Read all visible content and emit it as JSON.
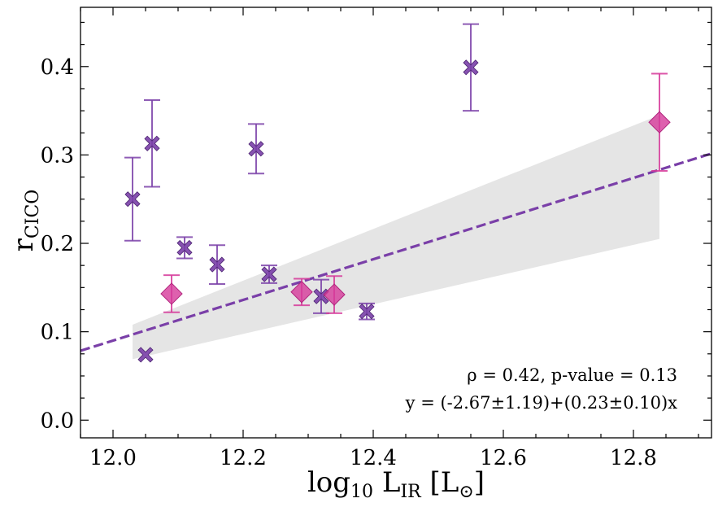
{
  "chart_data": {
    "type": "scatter",
    "title": "",
    "xlabel": {
      "base": "log",
      "base_sub": "10",
      "main": " L",
      "main_sub": "IR",
      "unit_open": " [L",
      "unit_sub": "⊙",
      "unit_close": "]"
    },
    "ylabel": {
      "main": "r",
      "sub": "CICO"
    },
    "xlim": [
      11.95,
      12.92
    ],
    "ylim": [
      -0.02,
      0.467
    ],
    "xticks": [
      12.0,
      12.2,
      12.4,
      12.6,
      12.8
    ],
    "xtick_labels": [
      "12.0",
      "12.2",
      "12.4",
      "12.6",
      "12.8"
    ],
    "yticks": [
      0.0,
      0.1,
      0.2,
      0.3,
      0.4
    ],
    "ytick_labels": [
      "0.0",
      "0.1",
      "0.2",
      "0.3",
      "0.4"
    ],
    "x_minor_step": 0.05,
    "y_minor_step": 0.025,
    "grid": false,
    "series": [
      {
        "name": "crosses",
        "marker": "X",
        "color": "#7a3fa8",
        "points": [
          {
            "x": 12.03,
            "y": 0.25,
            "err": 0.047
          },
          {
            "x": 12.05,
            "y": 0.074,
            "err": 0.0
          },
          {
            "x": 12.06,
            "y": 0.313,
            "err": 0.049
          },
          {
            "x": 12.11,
            "y": 0.195,
            "err": 0.012
          },
          {
            "x": 12.16,
            "y": 0.176,
            "err": 0.022
          },
          {
            "x": 12.22,
            "y": 0.307,
            "err": 0.028
          },
          {
            "x": 12.24,
            "y": 0.165,
            "err": 0.01
          },
          {
            "x": 12.32,
            "y": 0.14,
            "err": 0.019
          },
          {
            "x": 12.39,
            "y": 0.123,
            "err": 0.009
          },
          {
            "x": 12.55,
            "y": 0.399,
            "err": 0.049
          }
        ]
      },
      {
        "name": "diamonds",
        "marker": "D",
        "color": "#d63a9a",
        "points": [
          {
            "x": 12.09,
            "y": 0.143,
            "err": 0.021
          },
          {
            "x": 12.29,
            "y": 0.145,
            "err": 0.015
          },
          {
            "x": 12.34,
            "y": 0.142,
            "err": 0.021
          },
          {
            "x": 12.84,
            "y": 0.337,
            "err": 0.055
          }
        ]
      }
    ],
    "fit": {
      "intercept": -2.67,
      "slope": 0.23,
      "color": "#7a3fa8",
      "style": "dashed"
    },
    "confidence_band": {
      "color": "#e5e5e5",
      "x": [
        12.03,
        12.84
      ],
      "upper": [
        0.108,
        0.345
      ],
      "lower": [
        0.069,
        0.205
      ]
    },
    "annotations": [
      "ρ = 0.42, p-value = 0.13",
      "y = (-2.67±1.19)+(0.23±0.10)x"
    ]
  }
}
